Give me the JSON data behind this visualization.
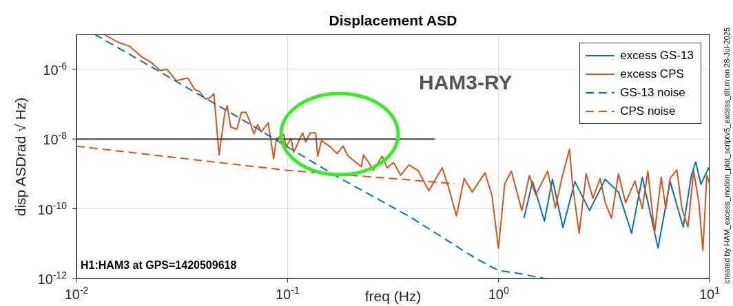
{
  "chart_data": {
    "type": "line",
    "title": "Displacement ASD",
    "xlabel": "freq (Hz)",
    "ylabel": "disp ASDrad √ Hz)",
    "log": "xy",
    "grid": true,
    "legend": "top right",
    "xlim": [
      0.01,
      10
    ],
    "ylim": [
      1e-12,
      1e-05
    ],
    "xticks": [
      {
        "value": 0.01,
        "label": "10$^{-2}$"
      },
      {
        "value": 0.1,
        "label": "10$^{-1}$"
      },
      {
        "value": 1,
        "label": "10$^{0}$"
      },
      {
        "value": 10,
        "label": "10$^{1}$"
      }
    ],
    "yticks": [
      {
        "value": 1e-12,
        "label": "10$^{-12}$"
      },
      {
        "value": 1e-10,
        "label": "10$^{-10}$"
      },
      {
        "value": 1e-08,
        "label": "10$^{-8}$"
      },
      {
        "value": 1e-06,
        "label": "10$^{-6}$"
      }
    ],
    "annotations": [
      "HAM3-RY",
      "H1:HAM3 at GPS=1420509618",
      "created by HAM_excess_motion_plot_scriptv5_excess_tilt.m on 28-Jul-2025"
    ],
    "series": [
      {
        "name": "excess GS-13",
        "color": "#0072bd",
        "line_style": "solid",
        "x": [
          1.32,
          1.45,
          1.65,
          1.8,
          2.02,
          2.3,
          2.7,
          3.2,
          3.7,
          4.27,
          4.8,
          5.7,
          6.5,
          7.5,
          8.2,
          8.6,
          9.1,
          9.9,
          10
        ],
        "values": [
          5.4e-11,
          6e-10,
          4.4e-11,
          7e-10,
          2.9e-11,
          6e-10,
          8.9e-11,
          7e-10,
          3e-10,
          2e-11,
          8e-10,
          7.5e-12,
          6e-10,
          3e-11,
          9e-10,
          2.2e-09,
          5e-10,
          1.5e-09,
          1.2e-09
        ]
      },
      {
        "name": "excess CPS",
        "color": "#d95319",
        "line_style": "solid",
        "x": [
          0.0135,
          0.0157,
          0.0178,
          0.0203,
          0.0225,
          0.0249,
          0.0268,
          0.0297,
          0.0337,
          0.0364,
          0.0383,
          0.0407,
          0.0429,
          0.0448,
          0.0474,
          0.0505,
          0.0518,
          0.0538,
          0.0575,
          0.0605,
          0.0636,
          0.066,
          0.0694,
          0.0722,
          0.0751,
          0.081,
          0.086,
          0.0885,
          0.096,
          0.0985,
          0.104,
          0.107,
          0.118,
          0.122,
          0.128,
          0.136,
          0.139,
          0.145,
          0.16,
          0.172,
          0.183,
          0.194,
          0.224,
          0.229,
          0.243,
          0.255,
          0.281,
          0.296,
          0.318,
          0.344,
          0.376,
          0.415,
          0.468,
          0.541,
          0.58,
          0.632,
          0.687,
          0.75,
          0.862,
          0.93,
          0.999,
          1.07,
          1.15,
          1.29,
          1.4,
          1.5,
          1.71,
          1.86,
          2.0,
          2.17,
          2.24,
          2.41,
          2.6,
          2.8,
          3.03,
          3.2,
          3.43,
          3.7,
          4.0,
          4.43,
          4.8,
          5.1,
          5.49,
          5.9,
          6.2,
          6.5,
          7.0,
          7.4,
          7.9,
          8.4,
          8.9,
          9.3,
          9.7,
          10
        ],
        "values": [
          1e-05,
          6e-06,
          4.6e-06,
          2.3e-06,
          1.6e-06,
          9.2e-07,
          1e-06,
          4.7e-07,
          5.6e-07,
          2.6e-07,
          2.3e-07,
          1.4e-07,
          1.5e-07,
          2e-07,
          3.5e-09,
          5.8e-08,
          8.9e-08,
          2.2e-08,
          1.9e-08,
          5.8e-08,
          5.8e-08,
          3.4e-08,
          1.4e-08,
          2.6e-08,
          1.6e-08,
          2.9e-08,
          2.7e-09,
          1e-08,
          1.35e-08,
          5.8e-09,
          1.05e-08,
          4.2e-09,
          1.5e-08,
          8.2e-09,
          1.5e-08,
          1.5e-08,
          3.2e-09,
          9.1e-09,
          5.8e-09,
          3.8e-09,
          6.3e-09,
          3.2e-09,
          1.6e-09,
          3.5e-09,
          2.1e-09,
          1.26e-09,
          3.2e-09,
          1.5e-09,
          2.1e-09,
          9.1e-10,
          1.8e-09,
          1.26e-09,
          3.3e-10,
          1.5e-09,
          4e-10,
          6.2e-11,
          7.4e-10,
          3e-10,
          1.07e-09,
          2.5e-10,
          7.4e-12,
          5.2e-10,
          1.2e-09,
          8.9e-11,
          9e-10,
          2.5e-10,
          1.2e-09,
          1.07e-10,
          8e-10,
          5.1e-09,
          5.2e-10,
          2e-11,
          1e-09,
          2e-10,
          7.4e-10,
          1.5e-10,
          5.4e-11,
          1e-09,
          1.5e-10,
          6.2e-10,
          1e-10,
          1.2e-09,
          2.1e-11,
          8e-10,
          1e-10,
          7.4e-10,
          1.3e-09,
          1e-10,
          3e-11,
          1.2e-09,
          1.5e-10,
          6.3e-12,
          9.1e-10,
          5.2e-10
        ]
      },
      {
        "name": "GS-13 noise",
        "color": "#0072bd",
        "line_style": "dashed",
        "x": [
          0.0122,
          0.02,
          0.0605,
          0.168,
          0.378,
          0.778,
          1.0,
          1.24,
          1.66
        ],
        "values": [
          1e-05,
          1.8e-06,
          3.7e-08,
          9e-10,
          6e-11,
          3.8e-12,
          1.7e-12,
          1.4e-12,
          1e-12
        ]
      },
      {
        "name": "CPS noise",
        "color": "#d95319",
        "line_style": "dashed",
        "x": [
          0.01,
          0.1,
          0.31,
          0.62
        ],
        "values": [
          6.2e-09,
          1.26e-09,
          7.4e-10,
          5.2e-10
        ]
      },
      {
        "color": "#404040",
        "line_style": "solid",
        "x": [
          0.01,
          0.5
        ],
        "values": [
          1e-08,
          1e-08
        ]
      }
    ]
  }
}
